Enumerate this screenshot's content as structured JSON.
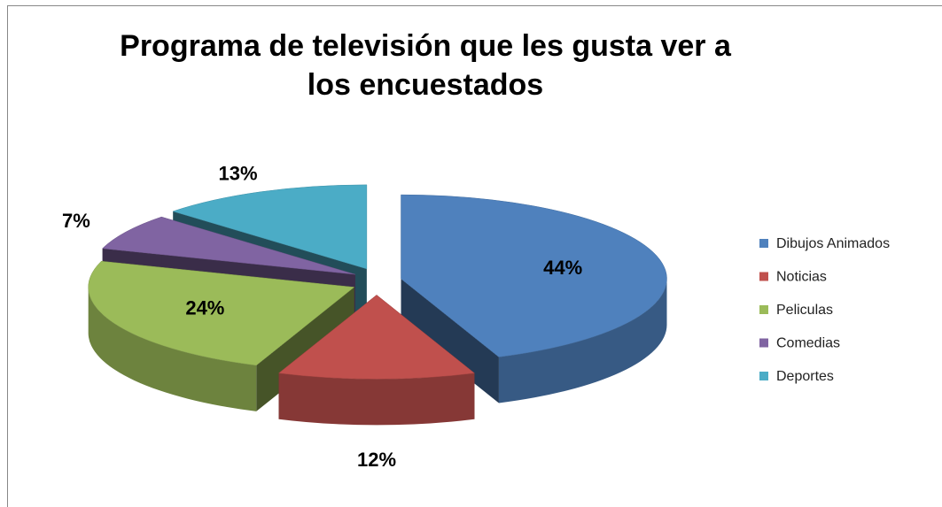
{
  "chart_data": {
    "type": "pie3d",
    "title": "Programa de televisión que les gusta ver a los encuestados",
    "categories": [
      "Dibujos Animados",
      "Noticias",
      "Peliculas",
      "Comedias",
      "Deportes"
    ],
    "values": [
      44,
      12,
      24,
      7,
      13
    ],
    "value_labels": [
      "44%",
      "12%",
      "24%",
      "7%",
      "13%"
    ],
    "colors": [
      "#4f81bd",
      "#c0504d",
      "#9bbb59",
      "#8064a2",
      "#4bacc6"
    ],
    "legend": "right"
  }
}
